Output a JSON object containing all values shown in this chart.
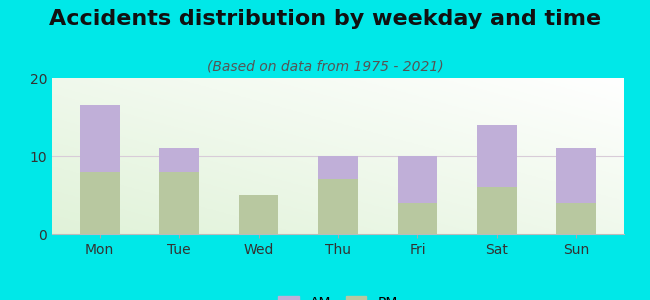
{
  "title": "Accidents distribution by weekday and time",
  "subtitle": "(Based on data from 1975 - 2021)",
  "days": [
    "Mon",
    "Tue",
    "Wed",
    "Thu",
    "Fri",
    "Sat",
    "Sun"
  ],
  "pm_values": [
    8.0,
    8.0,
    5.0,
    7.0,
    4.0,
    6.0,
    4.0
  ],
  "am_values": [
    8.5,
    3.0,
    0.0,
    3.0,
    6.0,
    8.0,
    7.0
  ],
  "am_color": "#c0afd8",
  "pm_color": "#b8c8a0",
  "bg_color": "#00e8e8",
  "ylim": [
    0,
    20
  ],
  "yticks": [
    0,
    10,
    20
  ],
  "grid_color": "#d8ccd8",
  "title_fontsize": 16,
  "subtitle_fontsize": 10,
  "tick_fontsize": 10,
  "legend_fontsize": 10,
  "bar_width": 0.5
}
